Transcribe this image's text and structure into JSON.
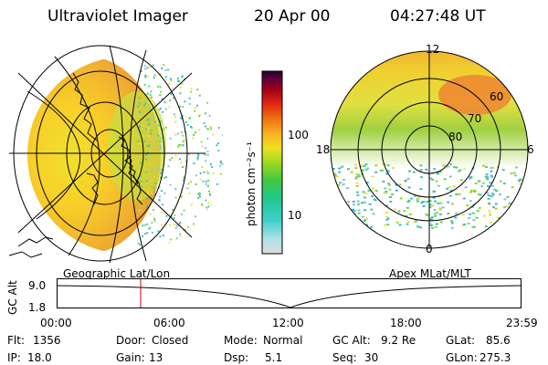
{
  "header": {
    "title": "Ultraviolet Imager",
    "date": "20 Apr 00",
    "time": "04:27:48 UT"
  },
  "left_image": {
    "caption": "Geographic Lat/Lon"
  },
  "right_image": {
    "caption": "Apex MLat/MLT",
    "lat_labels": [
      "60",
      "70",
      "80"
    ],
    "mlt_labels": [
      "12",
      "18",
      "6",
      "0"
    ]
  },
  "colorbar": {
    "label": "photon cm⁻²s⁻¹",
    "ticks": [
      "100",
      "10"
    ],
    "ticks_values": [
      100,
      10
    ],
    "colors": [
      "#dcdcdc",
      "#b0e0e8",
      "#40d0c8",
      "#20c890",
      "#40c840",
      "#a0d820",
      "#f0e020",
      "#f8b020",
      "#f07010",
      "#e02810",
      "#a00018",
      "#5a0040",
      "#200020"
    ]
  },
  "altitude_plot": {
    "ylabel": "GC Alt",
    "y_ticks": [
      "9.0",
      "1.8"
    ],
    "x_ticks": [
      "00:00",
      "06:00",
      "12:00",
      "18:00",
      "23:59"
    ],
    "current_marker_color": "#cc0000"
  },
  "status": {
    "flt_label": "Flt:",
    "flt_value": "1356",
    "door_label": "Door:",
    "door_value": "Closed",
    "mode_label": "Mode:",
    "mode_value": "Normal",
    "gcalt_label": "GC Alt:",
    "gcalt_value": "9.2 Re",
    "glat_label": "GLat:",
    "glat_value": "85.6",
    "ip_label": "IP:",
    "ip_value": "18.0",
    "gain_label": "Gain:",
    "gain_value": "13",
    "dsp_label": "Dsp:",
    "dsp_value": "5.1",
    "seq_label": "Seq:",
    "seq_value": "30",
    "glon_label": "GLon:",
    "glon_value": "275.3"
  }
}
